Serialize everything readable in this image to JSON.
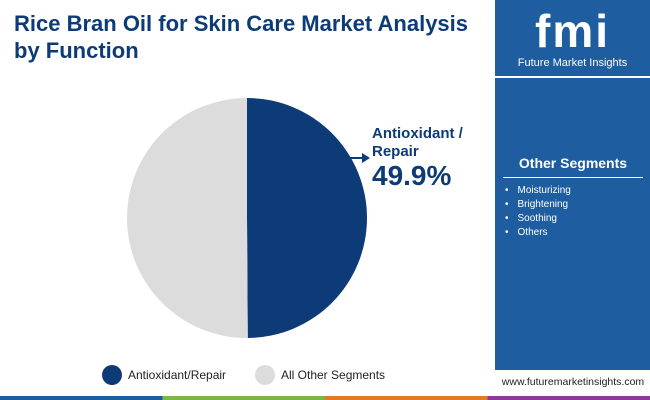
{
  "chart_data": {
    "type": "pie",
    "title": "Rice Bran Oil for Skin Care Market Analysis by Function",
    "categories": [
      "Antioxidant/Repair",
      "All Other Segments"
    ],
    "values": [
      49.9,
      50.1
    ],
    "value_labels": [
      "49.9%",
      null
    ],
    "colors": [
      "#0d3b78",
      "#dcdcdc"
    ],
    "annotation": "Antioxidant / Repair",
    "legend": "bottom"
  },
  "sidebar": {
    "logo": "fmi",
    "brand": "Future Market Insights",
    "heading": "Other Segments",
    "items": [
      "Moisturizing",
      "Brightening",
      "Soothing",
      "Others"
    ],
    "website": "www.futuremarketinsights.com"
  }
}
